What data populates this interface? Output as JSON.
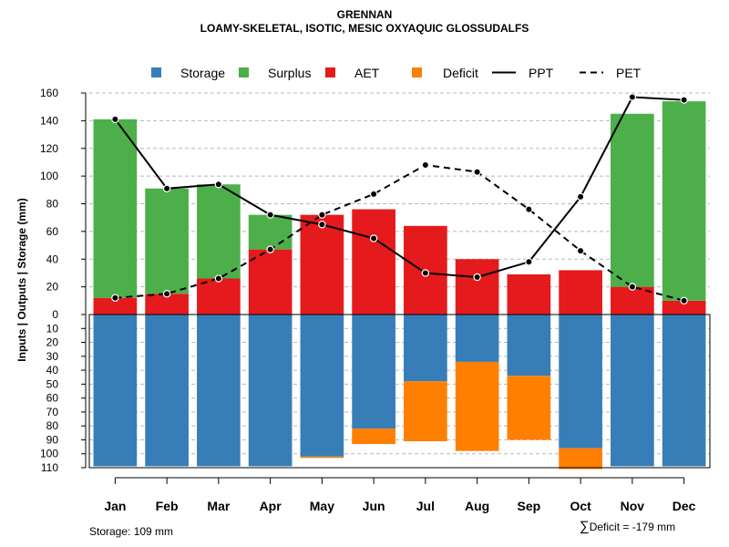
{
  "chart_data": {
    "type": "bar",
    "title": "GRENNAN",
    "subtitle": "LOAMY-SKELETAL, ISOTIC, MESIC OXYAQUIC GLOSSUDALFS",
    "ylabel": "Inputs | Outputs | Storage    (mm)",
    "categories": [
      "Jan",
      "Feb",
      "Mar",
      "Apr",
      "May",
      "Jun",
      "Jul",
      "Aug",
      "Sep",
      "Oct",
      "Nov",
      "Dec"
    ],
    "ylim_top": [
      0,
      160
    ],
    "yticks_top": [
      0,
      20,
      40,
      60,
      80,
      100,
      120,
      140,
      160
    ],
    "ylim_bottom": [
      0,
      110
    ],
    "yticks_bottom": [
      0,
      10,
      20,
      30,
      40,
      50,
      60,
      70,
      80,
      90,
      100,
      110
    ],
    "legend": [
      {
        "label": "Storage",
        "kind": "box",
        "color": "#377EB8"
      },
      {
        "label": "Surplus",
        "kind": "box",
        "color": "#4DAF4A"
      },
      {
        "label": "AET",
        "kind": "box",
        "color": "#E41A1C"
      },
      {
        "label": "Deficit",
        "kind": "box",
        "color": "#FF7F00"
      },
      {
        "label": "PPT",
        "kind": "solid",
        "color": "#000000"
      },
      {
        "label": "PET",
        "kind": "dashed",
        "color": "#000000"
      }
    ],
    "series": [
      {
        "name": "AET",
        "color": "#E41A1C",
        "values": [
          12,
          15,
          26,
          47,
          72,
          76,
          64,
          40,
          29,
          32,
          20,
          10
        ]
      },
      {
        "name": "Surplus",
        "color": "#4DAF4A",
        "values": [
          129,
          76,
          68,
          25,
          0,
          0,
          0,
          0,
          0,
          0,
          125,
          144
        ]
      },
      {
        "name": "PPT",
        "color": "#000000",
        "line": "solid",
        "values": [
          141,
          91,
          94,
          72,
          65,
          55,
          30,
          27,
          38,
          85,
          157,
          155
        ]
      },
      {
        "name": "PET",
        "color": "#000000",
        "line": "dashed",
        "values": [
          12,
          15,
          26,
          47,
          72,
          87,
          108,
          103,
          76,
          46,
          20,
          10
        ]
      },
      {
        "name": "Storage",
        "color": "#377EB8",
        "values": [
          109,
          109,
          109,
          109,
          102,
          82,
          48,
          34,
          44,
          96,
          109,
          109
        ]
      },
      {
        "name": "Deficit",
        "color": "#FF7F00",
        "values": [
          0,
          0,
          0,
          0,
          1,
          11,
          43,
          64,
          46,
          15,
          0,
          0
        ]
      }
    ]
  },
  "footer": {
    "storage_text": "Storage: 109 mm",
    "deficit_symbol": "∑",
    "deficit_text": "Deficit = -179 mm"
  }
}
